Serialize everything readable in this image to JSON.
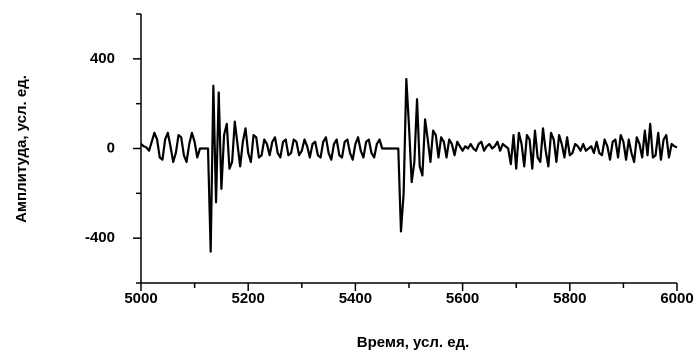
{
  "chart_data": {
    "type": "line",
    "xlabel": "Время, усл. ед.",
    "ylabel": "Амплитуда, усл. ед.",
    "xlim": [
      5000,
      6000
    ],
    "xticks": [
      5000,
      5200,
      5400,
      5600,
      5800,
      6000
    ],
    "xminorticks": [
      5100,
      5300,
      5500,
      5700,
      5900
    ],
    "ylim": [
      -600,
      600
    ],
    "yticks": [
      -400,
      0,
      400
    ],
    "yminorticks": [
      -600,
      -200,
      200,
      600
    ],
    "color": "#000000",
    "x": [
      5000,
      5005,
      5010,
      5015,
      5020,
      5025,
      5030,
      5035,
      5040,
      5045,
      5050,
      5055,
      5060,
      5065,
      5070,
      5075,
      5080,
      5085,
      5090,
      5095,
      5100,
      5105,
      5110,
      5115,
      5120,
      5125,
      5130,
      5135,
      5140,
      5145,
      5150,
      5155,
      5160,
      5165,
      5170,
      5175,
      5180,
      5185,
      5190,
      5195,
      5200,
      5205,
      5210,
      5215,
      5220,
      5225,
      5230,
      5235,
      5240,
      5245,
      5250,
      5255,
      5260,
      5265,
      5270,
      5275,
      5280,
      5285,
      5290,
      5295,
      5300,
      5305,
      5310,
      5315,
      5320,
      5325,
      5330,
      5335,
      5340,
      5345,
      5350,
      5355,
      5360,
      5365,
      5370,
      5375,
      5380,
      5385,
      5390,
      5395,
      5400,
      5405,
      5410,
      5415,
      5420,
      5425,
      5430,
      5435,
      5440,
      5445,
      5450,
      5455,
      5460,
      5465,
      5470,
      5475,
      5480,
      5485,
      5490,
      5495,
      5500,
      5505,
      5510,
      5515,
      5520,
      5525,
      5530,
      5535,
      5540,
      5545,
      5550,
      5555,
      5560,
      5565,
      5570,
      5575,
      5580,
      5585,
      5590,
      5595,
      5600,
      5605,
      5610,
      5615,
      5620,
      5625,
      5630,
      5635,
      5640,
      5645,
      5650,
      5655,
      5660,
      5665,
      5670,
      5675,
      5680,
      5685,
      5690,
      5695,
      5700,
      5705,
      5710,
      5715,
      5720,
      5725,
      5730,
      5735,
      5740,
      5745,
      5750,
      5755,
      5760,
      5765,
      5770,
      5775,
      5780,
      5785,
      5790,
      5795,
      5800,
      5805,
      5810,
      5815,
      5820,
      5825,
      5830,
      5835,
      5840,
      5845,
      5850,
      5855,
      5860,
      5865,
      5870,
      5875,
      5880,
      5885,
      5890,
      5895,
      5900,
      5905,
      5910,
      5915,
      5920,
      5925,
      5930,
      5935,
      5940,
      5945,
      5950,
      5955,
      5960,
      5965,
      5970,
      5975,
      5980,
      5985,
      5990,
      5995,
      6000
    ],
    "y": [
      20,
      10,
      5,
      -10,
      30,
      70,
      40,
      -40,
      -50,
      40,
      70,
      10,
      -60,
      -20,
      60,
      50,
      -30,
      -60,
      20,
      70,
      30,
      -40,
      0,
      0,
      0,
      0,
      -460,
      280,
      -240,
      250,
      -180,
      60,
      110,
      -90,
      -60,
      120,
      20,
      -80,
      30,
      90,
      -20,
      -60,
      60,
      50,
      -40,
      -30,
      40,
      20,
      -30,
      30,
      50,
      -20,
      -40,
      30,
      40,
      -30,
      -20,
      40,
      30,
      -30,
      -10,
      40,
      10,
      -40,
      20,
      30,
      -30,
      -40,
      30,
      50,
      -20,
      -50,
      20,
      40,
      -30,
      -40,
      30,
      40,
      -20,
      -50,
      20,
      50,
      -10,
      -40,
      30,
      40,
      -20,
      -40,
      20,
      40,
      0,
      0,
      0,
      0,
      0,
      0,
      0,
      -370,
      -200,
      310,
      100,
      -150,
      -60,
      220,
      -80,
      -120,
      130,
      40,
      -60,
      80,
      60,
      -40,
      50,
      30,
      -40,
      40,
      20,
      -30,
      30,
      10,
      -10,
      10,
      0,
      20,
      0,
      -10,
      20,
      30,
      -10,
      10,
      20,
      0,
      10,
      30,
      -10,
      20,
      10,
      0,
      -70,
      60,
      -90,
      70,
      20,
      -80,
      60,
      40,
      -90,
      80,
      -40,
      -60,
      90,
      -10,
      -80,
      70,
      40,
      -60,
      60,
      20,
      -40,
      50,
      -30,
      -20,
      20,
      10,
      -10,
      20,
      -10,
      0,
      10,
      -20,
      30,
      -20,
      -30,
      40,
      10,
      -50,
      30,
      40,
      -40,
      60,
      30,
      -50,
      40,
      -20,
      -60,
      50,
      20,
      -40,
      80,
      -30,
      110,
      -40,
      -30,
      70,
      -50,
      40,
      60,
      -40,
      20,
      10,
      5
    ]
  }
}
